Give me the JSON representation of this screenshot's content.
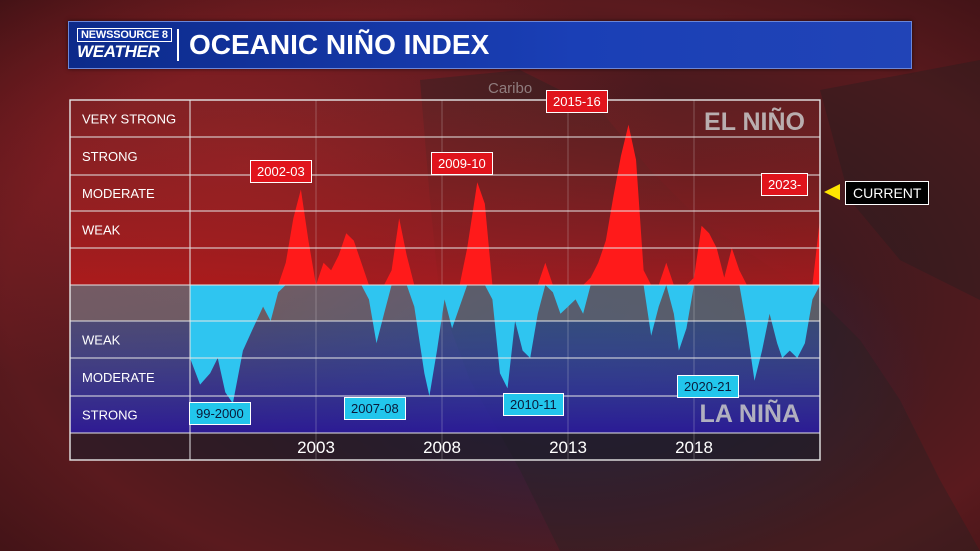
{
  "header": {
    "logo_line1": "NEWSSOURCE 8",
    "logo_line2": "WEATHER",
    "title": "OCEANIC NIÑO INDEX"
  },
  "map_label": "Caribo",
  "zones": {
    "el_nino": "EL NIÑO",
    "la_nina": "LA NIÑA"
  },
  "current_label": "CURRENT",
  "colors": {
    "el_nino": "#ff1a1a",
    "la_nina": "#2fc5f0",
    "banner": "#1a3fb6",
    "arrow": "#ffe500"
  },
  "chart_data": {
    "type": "area",
    "title": "OCEANIC NIÑO INDEX",
    "x_range": [
      1998.5,
      2023.5
    ],
    "x_ticks": [
      "2003",
      "2008",
      "2013",
      "2018"
    ],
    "y_range": [
      -2.0,
      2.8
    ],
    "rows": [
      "VERY STRONG",
      "STRONG",
      "MODERATE",
      "WEAK",
      "",
      "",
      "WEAK",
      "MODERATE",
      "STRONG",
      ""
    ],
    "series": [
      {
        "values": [
          [
            1998.5,
            -1.0
          ],
          [
            1998.9,
            -1.35
          ],
          [
            1999.3,
            -1.2
          ],
          [
            1999.6,
            -1.0
          ],
          [
            1999.9,
            -1.45
          ],
          [
            2000.2,
            -1.6
          ],
          [
            2000.6,
            -0.9
          ],
          [
            2001.0,
            -0.6
          ],
          [
            2001.4,
            -0.3
          ],
          [
            2001.7,
            -0.5
          ],
          [
            2002.0,
            -0.1
          ],
          [
            2002.3,
            0.3
          ],
          [
            2002.6,
            0.9
          ],
          [
            2002.9,
            1.3
          ],
          [
            2003.2,
            0.6
          ],
          [
            2003.5,
            0.0
          ],
          [
            2003.8,
            0.3
          ],
          [
            2004.1,
            0.2
          ],
          [
            2004.4,
            0.4
          ],
          [
            2004.7,
            0.7
          ],
          [
            2005.0,
            0.6
          ],
          [
            2005.3,
            0.3
          ],
          [
            2005.6,
            -0.2
          ],
          [
            2005.9,
            -0.8
          ],
          [
            2006.2,
            -0.4
          ],
          [
            2006.5,
            0.2
          ],
          [
            2006.8,
            0.9
          ],
          [
            2007.1,
            0.4
          ],
          [
            2007.4,
            -0.3
          ],
          [
            2007.8,
            -1.2
          ],
          [
            2008.0,
            -1.5
          ],
          [
            2008.3,
            -0.9
          ],
          [
            2008.6,
            -0.2
          ],
          [
            2008.9,
            -0.6
          ],
          [
            2009.2,
            -0.3
          ],
          [
            2009.5,
            0.5
          ],
          [
            2009.9,
            1.4
          ],
          [
            2010.2,
            1.1
          ],
          [
            2010.5,
            -0.2
          ],
          [
            2010.8,
            -1.2
          ],
          [
            2011.1,
            -1.4
          ],
          [
            2011.4,
            -0.5
          ],
          [
            2011.7,
            -0.9
          ],
          [
            2012.0,
            -1.0
          ],
          [
            2012.3,
            -0.4
          ],
          [
            2012.6,
            0.3
          ],
          [
            2012.9,
            -0.1
          ],
          [
            2013.2,
            -0.4
          ],
          [
            2013.5,
            -0.3
          ],
          [
            2013.8,
            -0.2
          ],
          [
            2014.1,
            -0.4
          ],
          [
            2014.4,
            0.1
          ],
          [
            2014.7,
            0.3
          ],
          [
            2015.0,
            0.6
          ],
          [
            2015.3,
            1.2
          ],
          [
            2015.6,
            2.0
          ],
          [
            2015.9,
            2.6
          ],
          [
            2016.2,
            1.9
          ],
          [
            2016.5,
            0.2
          ],
          [
            2016.8,
            -0.7
          ],
          [
            2017.1,
            -0.3
          ],
          [
            2017.4,
            0.3
          ],
          [
            2017.7,
            -0.4
          ],
          [
            2017.9,
            -0.9
          ],
          [
            2018.2,
            -0.6
          ],
          [
            2018.5,
            0.1
          ],
          [
            2018.8,
            0.8
          ],
          [
            2019.1,
            0.7
          ],
          [
            2019.4,
            0.5
          ],
          [
            2019.7,
            0.1
          ],
          [
            2020.0,
            0.5
          ],
          [
            2020.3,
            0.2
          ],
          [
            2020.6,
            -0.6
          ],
          [
            2020.9,
            -1.3
          ],
          [
            2021.2,
            -0.9
          ],
          [
            2021.5,
            -0.4
          ],
          [
            2021.8,
            -0.8
          ],
          [
            2022.0,
            -1.0
          ],
          [
            2022.3,
            -0.9
          ],
          [
            2022.6,
            -1.0
          ],
          [
            2022.9,
            -0.8
          ],
          [
            2023.2,
            -0.2
          ],
          [
            2023.5,
            0.9
          ]
        ]
      }
    ],
    "annotations": [
      {
        "text": "2002-03",
        "color": "red"
      },
      {
        "text": "2009-10",
        "color": "red"
      },
      {
        "text": "2015-16",
        "color": "red"
      },
      {
        "text": "2023-",
        "color": "red"
      },
      {
        "text": "99-2000",
        "color": "cyan"
      },
      {
        "text": "2007-08",
        "color": "cyan"
      },
      {
        "text": "2010-11",
        "color": "cyan"
      },
      {
        "text": "2020-21",
        "color": "cyan"
      }
    ],
    "grid": true
  }
}
